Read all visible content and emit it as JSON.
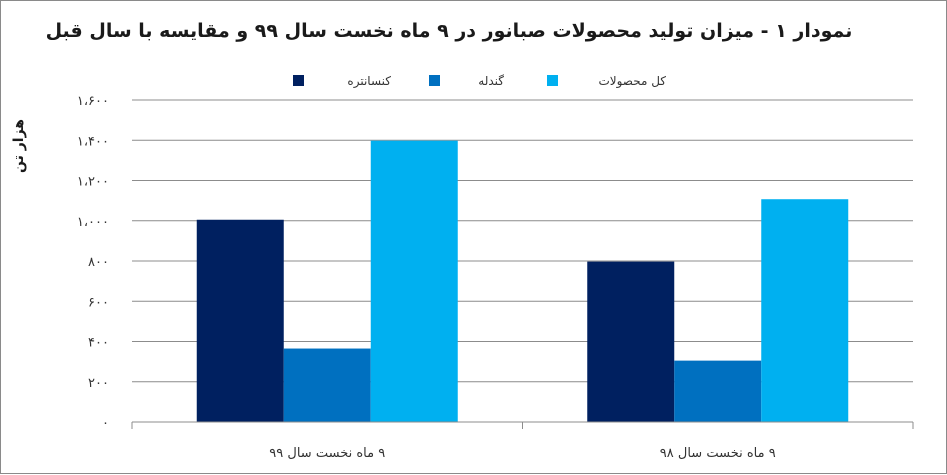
{
  "chart_data": {
    "type": "bar",
    "title": "نمودار ۱ - میزان تولید محصولات صبانور در ۹ ماه نخست سال ۹۹ و مقایسه با سال قبل",
    "ylabel": "هزار تن",
    "xlabel": "",
    "categories": [
      "۹ ماه نخست سال ۹۹",
      "۹ ماه نخست سال ۹۸"
    ],
    "series": [
      {
        "name": "کنسانتره",
        "color": "#002060",
        "values": [
          1005,
          797
        ]
      },
      {
        "name": "گندله",
        "color": "#0070C0",
        "values": [
          365,
          305
        ]
      },
      {
        "name": "کل محصولات",
        "color": "#00B0F0",
        "values": [
          1398,
          1107
        ]
      }
    ],
    "ylim": [
      0,
      1600
    ],
    "yticks": [
      0,
      200,
      400,
      600,
      800,
      1000,
      1200,
      1400,
      1600
    ],
    "ytick_labels": [
      "۰",
      "۲۰۰",
      "۴۰۰",
      "۶۰۰",
      "۸۰۰",
      "۱،۰۰۰",
      "۱،۲۰۰",
      "۱،۴۰۰",
      "۱،۶۰۰"
    ],
    "grid": true,
    "legend_position": "top"
  }
}
